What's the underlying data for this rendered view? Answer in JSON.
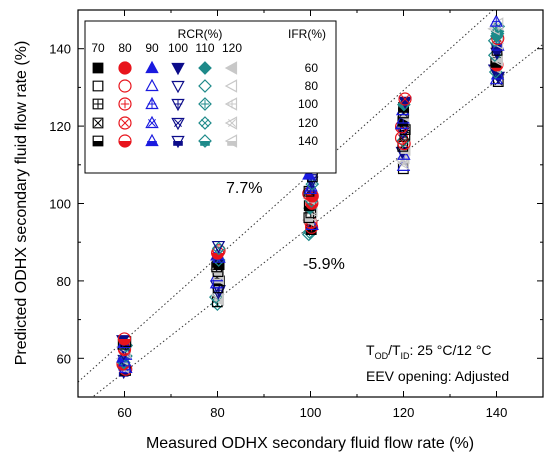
{
  "chart_data": {
    "type": "scatter",
    "xlabel": "Measured ODHX secondary fluid flow rate (%)",
    "ylabel": "Predicted ODHX secondary fluid flow rate (%)",
    "xlim": [
      50,
      150
    ],
    "ylim": [
      50,
      150
    ],
    "x_ticks": [
      "60",
      "80",
      "100",
      "120",
      "140"
    ],
    "y_ticks": [
      "60",
      "80",
      "100",
      "120",
      "140"
    ],
    "legend": {
      "rcr_title": "RCR(%)",
      "ifr_title": "IFR(%)",
      "rcr_values": [
        "70",
        "80",
        "90",
        "100",
        "110",
        "120"
      ],
      "ifr_values": [
        "60",
        "80",
        "100",
        "120",
        "140"
      ],
      "rcr_colors": [
        "#000000",
        "#e8141c",
        "#1a1adf",
        "#0c0c8a",
        "#1e8a8a",
        "#c8c8c8"
      ],
      "rcr_markers": [
        "square",
        "circle",
        "triangle-up",
        "triangle-down",
        "diamond",
        "triangle-left"
      ],
      "ifr_fills": [
        "filled",
        "open",
        "plus",
        "cross",
        "half"
      ]
    },
    "error_bands": [
      {
        "label": "7.7%",
        "slope": 1.077
      },
      {
        "label": "-5.9%",
        "slope": 0.941
      }
    ],
    "annotations": {
      "conditions_prefix": "T",
      "sub_od": "OD",
      "slash": "/T",
      "sub_id": "ID",
      "conditions_values": ": 25 °C/12 °C",
      "eev": "EEV opening: Adjusted"
    },
    "series": [
      {
        "x": 60,
        "y_range": [
          56.5,
          65
        ]
      },
      {
        "x": 80,
        "y_range": [
          74,
          89
        ]
      },
      {
        "x": 100,
        "y_range": [
          92,
          107.5
        ]
      },
      {
        "x": 120,
        "y_range": [
          109,
          127
        ]
      },
      {
        "x": 140,
        "y_range": [
          131.5,
          147
        ]
      }
    ]
  }
}
